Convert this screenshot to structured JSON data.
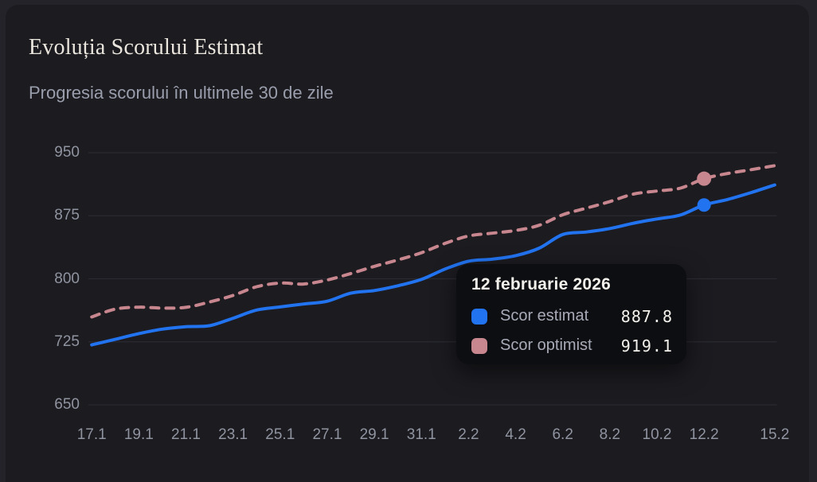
{
  "page": {
    "title": "Evoluția Scorului Estimat",
    "subtitle": "Progresia scorului în ultimele 30 de zile"
  },
  "colors": {
    "page_bg": "#232329",
    "card_bg": "#1b1b20",
    "grid_line": "#2a2b31",
    "axis_text": "#9094a0",
    "title_text": "#ebe6dd",
    "subtitle_text": "#9a9eac",
    "estimate_blue": "#2273f0",
    "optimist_pink": "#c8868e",
    "tooltip_bg": "#0d0e12",
    "tooltip_title_text": "#f3f1ec",
    "tooltip_label_text": "#a8abb7",
    "tooltip_value_text": "#f3f1ec"
  },
  "chart_data": {
    "type": "line",
    "title": "Evoluția Scorului Estimat",
    "subtitle": "Progresia scorului în ultimele 30 de zile",
    "x": [
      "17.1",
      "18.1",
      "19.1",
      "20.1",
      "21.1",
      "22.1",
      "23.1",
      "24.1",
      "25.1",
      "26.1",
      "27.1",
      "28.1",
      "29.1",
      "30.1",
      "31.1",
      "1.2",
      "2.2",
      "3.2",
      "4.2",
      "5.2",
      "6.2",
      "7.2",
      "8.2",
      "9.2",
      "10.2",
      "11.2",
      "12.2",
      "13.2",
      "14.2",
      "15.2"
    ],
    "x_tick_indices": [
      0,
      2,
      4,
      6,
      8,
      10,
      12,
      14,
      16,
      18,
      20,
      22,
      24,
      26,
      29
    ],
    "x_tick_labels": [
      "17.1",
      "19.1",
      "21.1",
      "23.1",
      "25.1",
      "27.1",
      "29.1",
      "31.1",
      "2.2",
      "4.2",
      "6.2",
      "8.2",
      "10.2",
      "12.2",
      "15.2"
    ],
    "y_ticks": [
      650,
      725,
      800,
      875,
      950
    ],
    "ylim": [
      650,
      950
    ],
    "grid": "horizontal",
    "legend_position": "none",
    "series": [
      {
        "name": "Scor estimat",
        "style": "solid",
        "color": "#2273f0",
        "values": [
          721.4,
          728.0,
          734.8,
          740.1,
          743.0,
          744.2,
          753.1,
          762.8,
          766.5,
          770.0,
          773.3,
          782.9,
          786.0,
          791.7,
          799.2,
          811.5,
          820.9,
          823.3,
          827.5,
          836.4,
          852.7,
          855.6,
          859.8,
          866.1,
          871.2,
          875.9,
          887.8,
          894.4,
          902.6,
          911.7
        ]
      },
      {
        "name": "Scor optimist",
        "style": "dashed",
        "color": "#c8868e",
        "values": [
          754.6,
          763.9,
          766.2,
          765.1,
          766.0,
          772.4,
          780.2,
          790.5,
          794.9,
          793.8,
          798.6,
          806.2,
          814.8,
          822.4,
          831.0,
          842.1,
          850.9,
          854.2,
          857.5,
          863.7,
          876.2,
          884.0,
          891.9,
          900.8,
          904.4,
          907.9,
          919.1,
          925.3,
          929.8,
          934.6
        ]
      }
    ],
    "highlight_index": 26,
    "highlight_x_label": "12.2"
  },
  "tooltip": {
    "date": "12 februarie 2026",
    "rows": [
      {
        "label": "Scor estimat",
        "value": "887.8",
        "color": "#2273f0"
      },
      {
        "label": "Scor optimist",
        "value": "919.1",
        "color": "#c8868e"
      }
    ]
  }
}
